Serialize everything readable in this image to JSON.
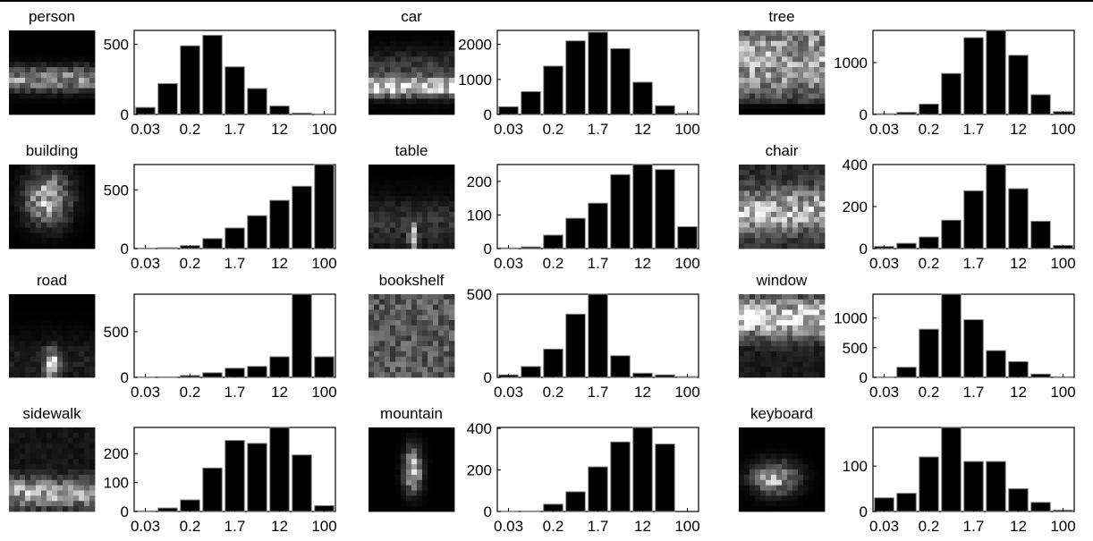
{
  "x_tick_labels": [
    "0.03",
    "0.2",
    "1.7",
    "12",
    "100"
  ],
  "chart_data": [
    {
      "type": "bar",
      "title": "person",
      "categories": [
        "1",
        "2",
        "3",
        "4",
        "5",
        "6",
        "7",
        "8",
        "9"
      ],
      "values": [
        50,
        220,
        490,
        565,
        340,
        185,
        60,
        10,
        3
      ],
      "ylim": [
        0,
        600
      ],
      "yticks": [
        0,
        500
      ],
      "grid": false
    },
    {
      "type": "bar",
      "title": "car",
      "categories": [
        "1",
        "2",
        "3",
        "4",
        "5",
        "6",
        "7",
        "8",
        "9"
      ],
      "values": [
        220,
        650,
        1380,
        2100,
        2350,
        1880,
        920,
        250,
        30
      ],
      "ylim": [
        0,
        2400
      ],
      "yticks": [
        0,
        1000,
        2000
      ],
      "grid": false
    },
    {
      "type": "bar",
      "title": "tree",
      "categories": [
        "1",
        "2",
        "3",
        "4",
        "5",
        "6",
        "7",
        "8",
        "9"
      ],
      "values": [
        15,
        40,
        200,
        790,
        1480,
        1620,
        1140,
        380,
        55
      ],
      "ylim": [
        0,
        1620
      ],
      "yticks": [
        0,
        1000
      ],
      "grid": false
    },
    {
      "type": "bar",
      "title": "building",
      "categories": [
        "1",
        "2",
        "3",
        "4",
        "5",
        "6",
        "7",
        "8",
        "9"
      ],
      "values": [
        3,
        8,
        25,
        85,
        175,
        280,
        410,
        530,
        715
      ],
      "ylim": [
        0,
        715
      ],
      "yticks": [
        0,
        500
      ],
      "grid": false
    },
    {
      "type": "bar",
      "title": "table",
      "categories": [
        "1",
        "2",
        "3",
        "4",
        "5",
        "6",
        "7",
        "8",
        "9"
      ],
      "values": [
        2,
        5,
        40,
        90,
        135,
        220,
        250,
        235,
        65
      ],
      "ylim": [
        0,
        250
      ],
      "yticks": [
        0,
        100,
        200
      ],
      "grid": false
    },
    {
      "type": "bar",
      "title": "chair",
      "categories": [
        "1",
        "2",
        "3",
        "4",
        "5",
        "6",
        "7",
        "8",
        "9"
      ],
      "values": [
        10,
        25,
        55,
        135,
        275,
        400,
        285,
        130,
        15
      ],
      "ylim": [
        0,
        400
      ],
      "yticks": [
        0,
        200,
        400
      ],
      "grid": false
    },
    {
      "type": "bar",
      "title": "road",
      "categories": [
        "1",
        "2",
        "3",
        "4",
        "5",
        "6",
        "7",
        "8",
        "9"
      ],
      "values": [
        2,
        5,
        20,
        50,
        100,
        120,
        225,
        910,
        225
      ],
      "ylim": [
        0,
        910
      ],
      "yticks": [
        0,
        500
      ],
      "grid": false
    },
    {
      "type": "bar",
      "title": "bookshelf",
      "categories": [
        "1",
        "2",
        "3",
        "4",
        "5",
        "6",
        "7",
        "8",
        "9"
      ],
      "values": [
        15,
        65,
        170,
        380,
        500,
        130,
        25,
        15,
        5
      ],
      "ylim": [
        0,
        500
      ],
      "yticks": [
        0,
        500
      ],
      "grid": false
    },
    {
      "type": "bar",
      "title": "window",
      "categories": [
        "1",
        "2",
        "3",
        "4",
        "5",
        "6",
        "7",
        "8",
        "9"
      ],
      "values": [
        5,
        170,
        810,
        1400,
        970,
        450,
        265,
        55,
        10
      ],
      "ylim": [
        0,
        1400
      ],
      "yticks": [
        0,
        500,
        1000
      ],
      "grid": false
    },
    {
      "type": "bar",
      "title": "sidewalk",
      "categories": [
        "1",
        "2",
        "3",
        "4",
        "5",
        "6",
        "7",
        "8",
        "9"
      ],
      "values": [
        2,
        12,
        40,
        150,
        245,
        235,
        290,
        195,
        20
      ],
      "ylim": [
        0,
        290
      ],
      "yticks": [
        0,
        100,
        200
      ],
      "grid": false
    },
    {
      "type": "bar",
      "title": "mountain",
      "categories": [
        "1",
        "2",
        "3",
        "4",
        "5",
        "6",
        "7",
        "8",
        "9"
      ],
      "values": [
        1,
        2,
        35,
        95,
        215,
        335,
        405,
        325,
        0
      ],
      "ylim": [
        0,
        405
      ],
      "yticks": [
        0,
        200,
        400
      ],
      "grid": false
    },
    {
      "type": "bar",
      "title": "keyboard",
      "categories": [
        "1",
        "2",
        "3",
        "4",
        "5",
        "6",
        "7",
        "8",
        "9"
      ],
      "values": [
        30,
        40,
        120,
        185,
        110,
        110,
        50,
        20,
        3
      ],
      "ylim": [
        0,
        185
      ],
      "yticks": [
        0,
        100
      ],
      "grid": false
    }
  ]
}
